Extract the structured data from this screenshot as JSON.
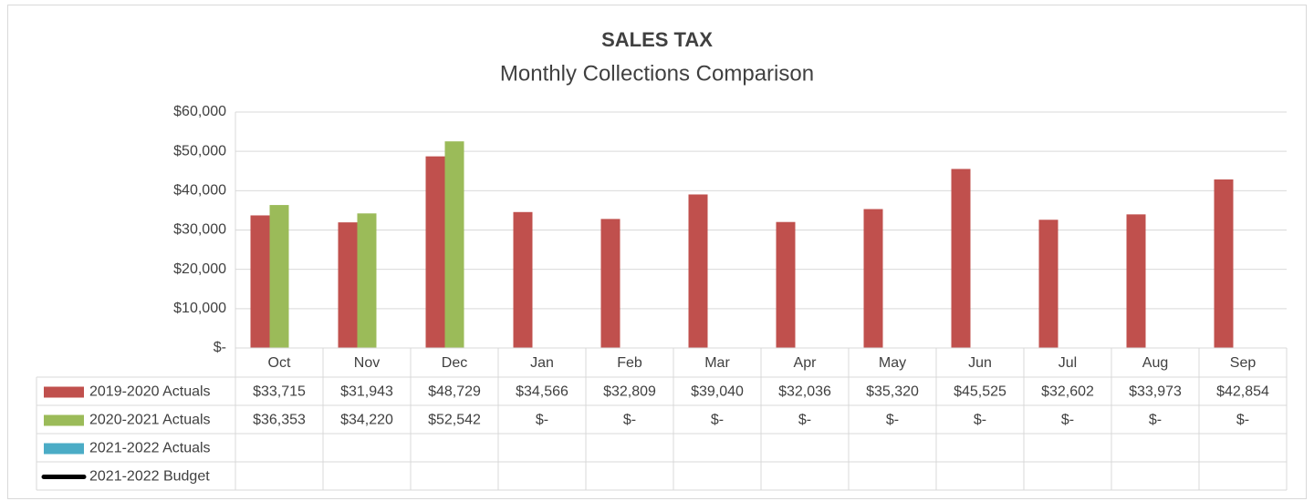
{
  "chart_data": {
    "type": "bar",
    "title": "SALES TAX",
    "subtitle": "Monthly Collections Comparison",
    "categories": [
      "Oct",
      "Nov",
      "Dec",
      "Jan",
      "Feb",
      "Mar",
      "Apr",
      "May",
      "Jun",
      "Jul",
      "Aug",
      "Sep"
    ],
    "series": [
      {
        "name": "2019-2020 Actuals",
        "color": "#c0504d",
        "type": "bar",
        "values": [
          33715,
          31943,
          48729,
          34566,
          32809,
          39040,
          32036,
          35320,
          45525,
          32602,
          33973,
          42854
        ],
        "value_labels": [
          "$33,715",
          "$31,943",
          "$48,729",
          "$34,566",
          "$32,809",
          "$39,040",
          "$32,036",
          "$35,320",
          "$45,525",
          "$32,602",
          "$33,973",
          "$42,854"
        ]
      },
      {
        "name": "2020-2021 Actuals",
        "color": "#9bbb59",
        "type": "bar",
        "values": [
          36353,
          34220,
          52542,
          0,
          0,
          0,
          0,
          0,
          0,
          0,
          0,
          0
        ],
        "value_labels": [
          "$36,353",
          "$34,220",
          "$52,542",
          "$-",
          "$-",
          "$-",
          "$-",
          "$-",
          "$-",
          "$-",
          "$-",
          "$-"
        ]
      },
      {
        "name": "2021-2022 Actuals",
        "color": "#4bacc6",
        "type": "bar",
        "values": [
          null,
          null,
          null,
          null,
          null,
          null,
          null,
          null,
          null,
          null,
          null,
          null
        ]
      },
      {
        "name": "2021-2022 Budget",
        "color": "#000000",
        "type": "line",
        "values": [
          null,
          null,
          null,
          null,
          null,
          null,
          null,
          null,
          null,
          null,
          null,
          null
        ]
      }
    ],
    "ylim": [
      0,
      60000
    ],
    "yticks": [
      {
        "value": 0,
        "label": "$-"
      },
      {
        "value": 10000,
        "label": "$10,000"
      },
      {
        "value": 20000,
        "label": "$20,000"
      },
      {
        "value": 30000,
        "label": "$30,000"
      },
      {
        "value": 40000,
        "label": "$40,000"
      },
      {
        "value": 50000,
        "label": "$50,000"
      },
      {
        "value": 60000,
        "label": "$60,000"
      }
    ],
    "grid": true
  }
}
